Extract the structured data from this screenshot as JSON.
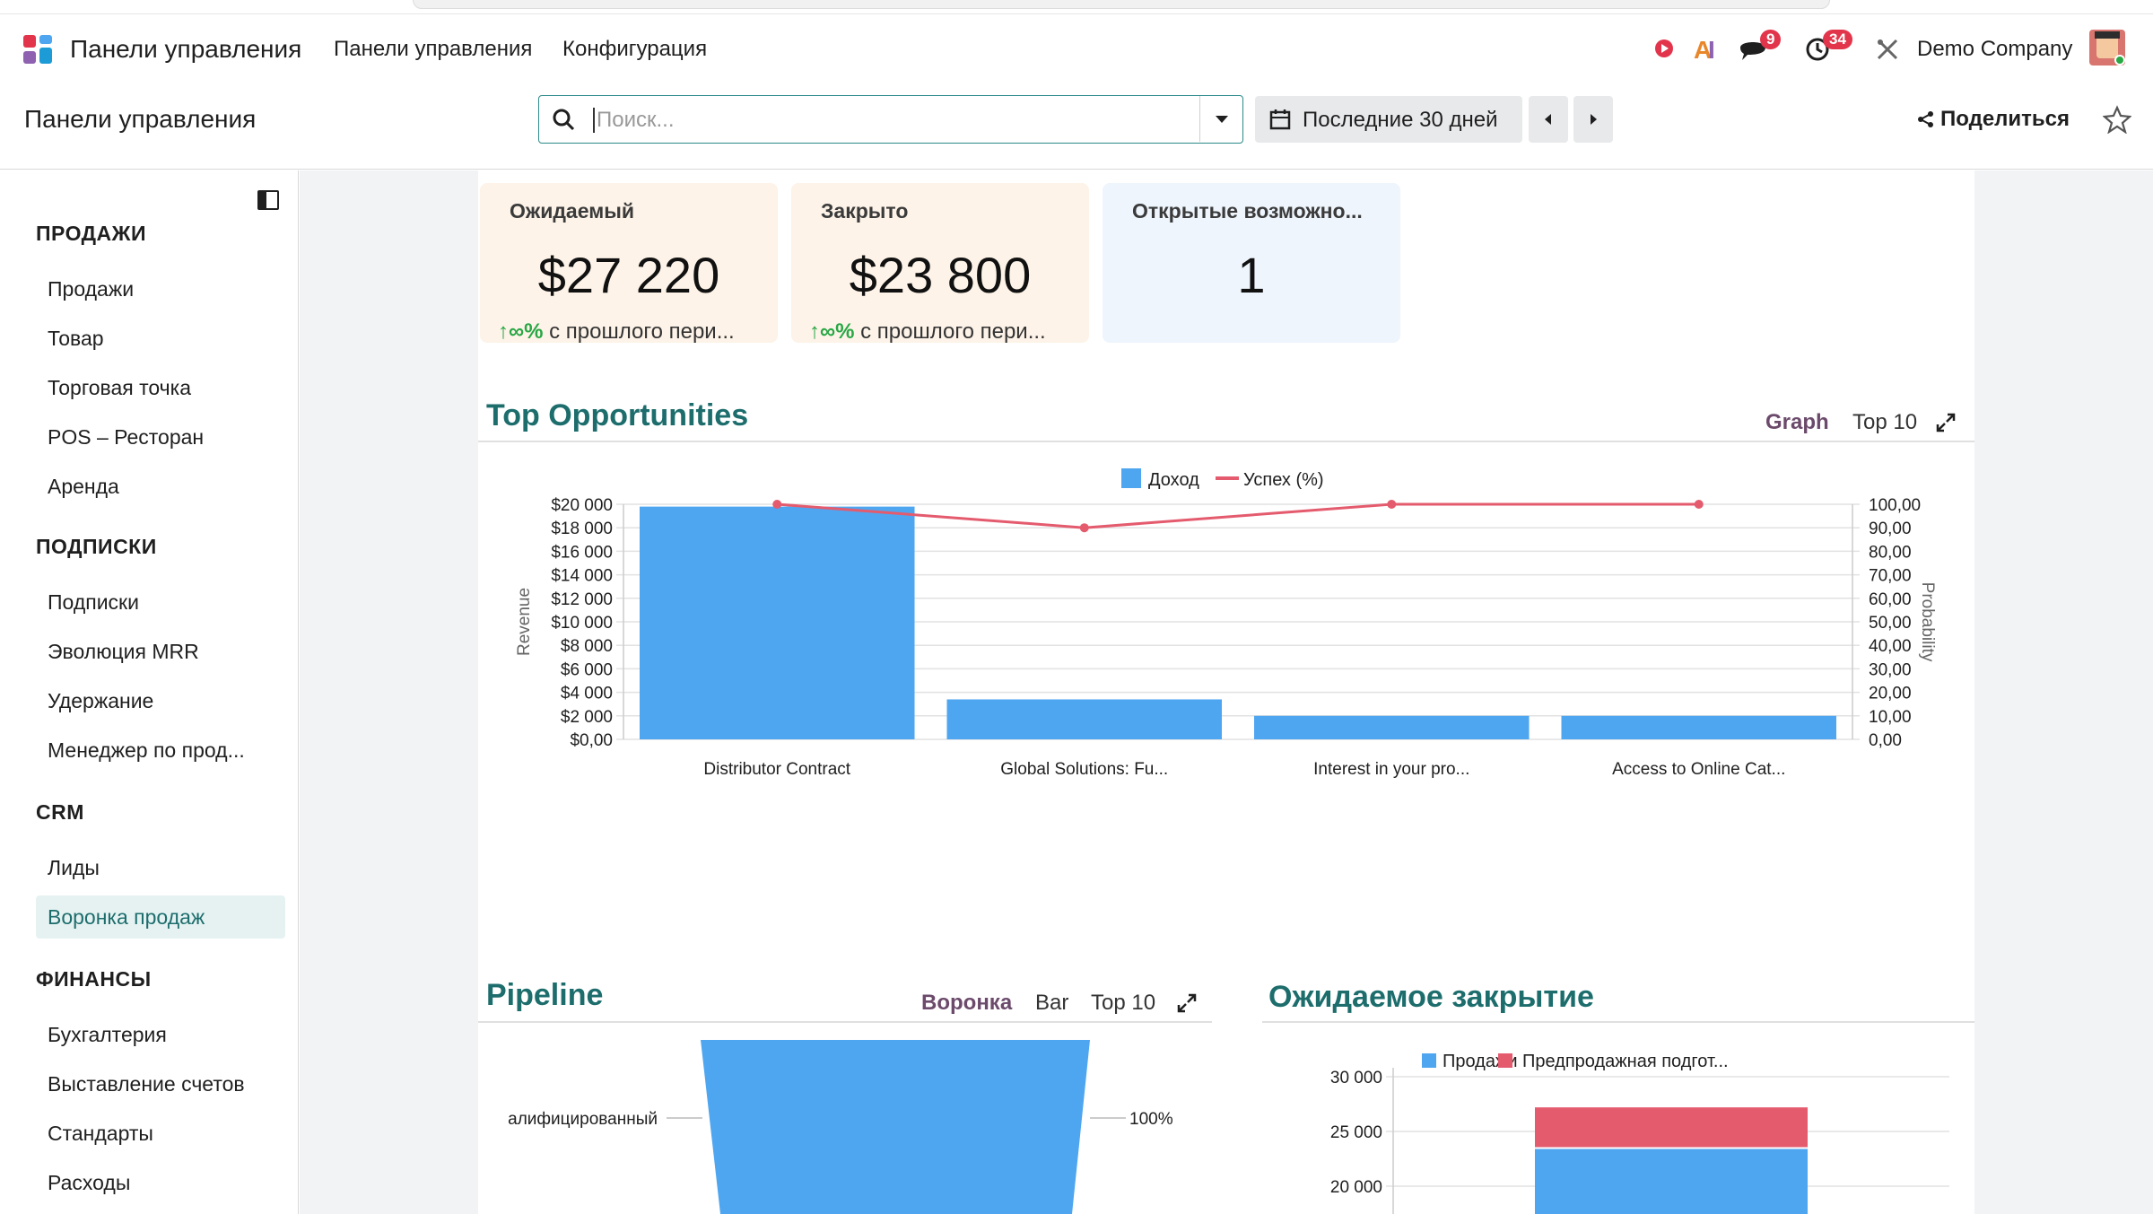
{
  "navbar": {
    "app_title": "Панели управления",
    "menu": [
      "Панели управления",
      "Конфигурация"
    ],
    "messages_count": "9",
    "activities_count": "34",
    "company": "Demo Company"
  },
  "control": {
    "breadcrumb": "Панели управления",
    "search_placeholder": "Поиск...",
    "date_filter": "Последние 30 дней",
    "share_label": "Поделиться"
  },
  "sidebar": {
    "sections": [
      {
        "title": "ПРОДАЖИ",
        "items": [
          "Продажи",
          "Товар",
          "Торговая точка",
          "POS – Ресторан",
          "Аренда"
        ]
      },
      {
        "title": "ПОДПИСКИ",
        "items": [
          "Подписки",
          "Эволюция MRR",
          "Удержание",
          "Менеджер по прод..."
        ]
      },
      {
        "title": "CRM",
        "items": [
          "Лиды",
          "Воронка продаж"
        ]
      },
      {
        "title": "ФИНАНСЫ",
        "items": [
          "Бухгалтерия",
          "Выставление счетов",
          "Стандарты",
          "Расходы"
        ]
      }
    ],
    "active_item": "Воронка продаж"
  },
  "kpis": [
    {
      "title": "Ожидаемый",
      "value": "$27 220",
      "delta_pct": "∞%",
      "delta_text": "с прошлого пери...",
      "bg": "#fdf3e8"
    },
    {
      "title": "Закрыто",
      "value": "$23 800",
      "delta_pct": "∞%",
      "delta_text": "с прошлого пери...",
      "bg": "#fdf3e8"
    },
    {
      "title": "Открытые возможно...",
      "value": "1",
      "delta_pct": "",
      "delta_text": "",
      "bg": "#eef5fd"
    }
  ],
  "top_opportunities": {
    "title": "Top Opportunities",
    "controls": [
      "Graph",
      "Top 10"
    ],
    "active_control": "Graph"
  },
  "pipeline": {
    "title": "Pipeline",
    "controls": [
      "Воронка",
      "Bar",
      "Top 10"
    ],
    "active_control": "Воронка",
    "funnel_label": "алифицированный",
    "funnel_pct": "100%"
  },
  "expected_closing": {
    "title": "Ожидаемое закрытие"
  },
  "chart_data": [
    {
      "type": "bar",
      "categories": [
        "Distributor Contract",
        "Global Solutions: Fu...",
        "Interest in your pro...",
        "Access to Online Cat..."
      ],
      "series": [
        {
          "name": "Доход",
          "type": "bar",
          "axis": "left",
          "values": [
            19800,
            3400,
            2000,
            2000
          ],
          "color": "#4ea6f0"
        },
        {
          "name": "Успех (%)",
          "type": "line",
          "axis": "right",
          "values": [
            100,
            90,
            100,
            100
          ],
          "color": "#e45b6e"
        }
      ],
      "ylabel": "Revenue",
      "y2label": "Probability",
      "ylim": [
        0,
        20000
      ],
      "y2lim": [
        0,
        100
      ],
      "yticks": [
        "$0,00",
        "$2 000",
        "$4 000",
        "$6 000",
        "$8 000",
        "$10 000",
        "$12 000",
        "$14 000",
        "$16 000",
        "$18 000",
        "$20 000"
      ],
      "y2ticks": [
        "0,00",
        "10,00",
        "20,00",
        "30,00",
        "40,00",
        "50,00",
        "60,00",
        "70,00",
        "80,00",
        "90,00",
        "100,00"
      ],
      "legend": "top-center",
      "grid": true
    },
    {
      "type": "bar",
      "categories": [
        "квалифицированный"
      ],
      "series": [
        {
          "name": "",
          "values": [
            100
          ]
        }
      ],
      "note": "funnel chart, visible stage shows 100%"
    },
    {
      "type": "bar",
      "stacked": true,
      "series": [
        {
          "name": "Продажи",
          "values": [
            23400
          ],
          "color": "#4ea6f0"
        },
        {
          "name": "Предпродажная подгот...",
          "values": [
            3800
          ],
          "color": "#e45b6e"
        }
      ],
      "yticks": [
        "20 000",
        "25 000",
        "30 000"
      ],
      "ylim_visible": [
        20000,
        30000
      ],
      "legend": "top-center"
    }
  ]
}
